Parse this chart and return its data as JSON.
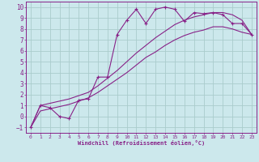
{
  "xlabel": "Windchill (Refroidissement éolien,°C)",
  "xlim": [
    -0.5,
    23.5
  ],
  "ylim": [
    -1.5,
    10.5
  ],
  "xticks": [
    0,
    1,
    2,
    3,
    4,
    5,
    6,
    7,
    8,
    9,
    10,
    11,
    12,
    13,
    14,
    15,
    16,
    17,
    18,
    19,
    20,
    21,
    22,
    23
  ],
  "yticks": [
    -1,
    0,
    1,
    2,
    3,
    4,
    5,
    6,
    7,
    8,
    9,
    10
  ],
  "bg_color": "#cce8ec",
  "line_color": "#882288",
  "grid_color": "#aacccc",
  "line1_x": [
    0,
    1,
    2,
    3,
    4,
    5,
    6,
    7,
    8,
    9,
    10,
    11,
    12,
    13,
    14,
    15,
    16,
    17,
    18,
    19,
    20,
    21,
    22,
    23
  ],
  "line1_y": [
    -1.0,
    1.0,
    0.8,
    0.0,
    -0.2,
    1.5,
    1.6,
    3.6,
    3.6,
    7.5,
    8.8,
    9.8,
    8.5,
    9.8,
    10.0,
    9.8,
    8.7,
    9.5,
    9.4,
    9.5,
    9.3,
    8.5,
    8.5,
    7.5
  ],
  "line2_x": [
    0,
    1,
    2,
    3,
    4,
    5,
    6,
    7,
    8,
    9,
    10,
    11,
    12,
    13,
    14,
    15,
    16,
    17,
    18,
    19,
    20,
    21,
    22,
    23
  ],
  "line2_y": [
    -1.0,
    1.0,
    1.2,
    1.4,
    1.6,
    1.9,
    2.2,
    2.8,
    3.5,
    4.2,
    5.0,
    5.8,
    6.5,
    7.2,
    7.8,
    8.4,
    8.8,
    9.1,
    9.3,
    9.5,
    9.5,
    9.3,
    8.8,
    7.5
  ],
  "line3_x": [
    0,
    1,
    2,
    3,
    4,
    5,
    6,
    7,
    8,
    9,
    10,
    11,
    12,
    13,
    14,
    15,
    16,
    17,
    18,
    19,
    20,
    21,
    22,
    23
  ],
  "line3_y": [
    -1.0,
    0.5,
    0.7,
    0.9,
    1.1,
    1.4,
    1.7,
    2.2,
    2.8,
    3.4,
    4.0,
    4.7,
    5.4,
    5.9,
    6.5,
    7.0,
    7.4,
    7.7,
    7.9,
    8.2,
    8.2,
    8.0,
    7.7,
    7.5
  ]
}
